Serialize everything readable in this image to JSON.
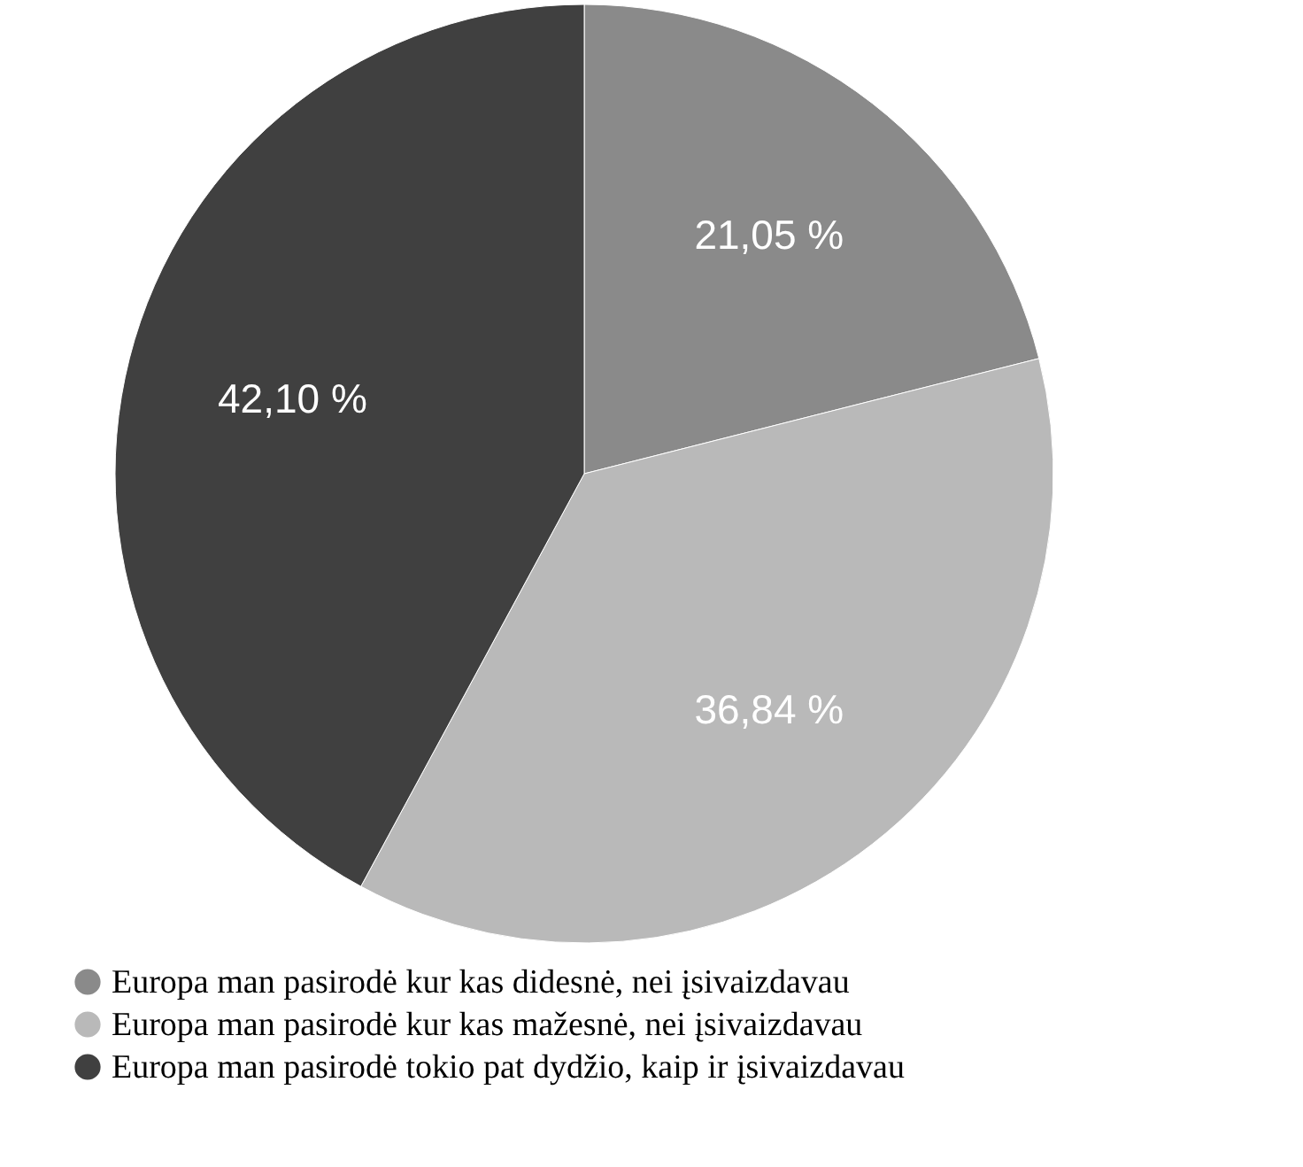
{
  "chart_data": {
    "type": "pie",
    "categories": [
      "Europa man pasirodė kur kas didesnė, nei įsivaizdavau",
      "Europa man pasirodė kur kas mažesnė, nei įsivaizdavau",
      "Europa man pasirodė tokio pat dydžio, kaip ir įsivaizdavau"
    ],
    "values": [
      21.05,
      36.84,
      42.1
    ],
    "colors": [
      "#8a8a8a",
      "#b9b9b9",
      "#404040"
    ],
    "value_labels": [
      "21,05 %",
      "36,84 %",
      "42,10 %"
    ],
    "legend": "bottom left"
  }
}
